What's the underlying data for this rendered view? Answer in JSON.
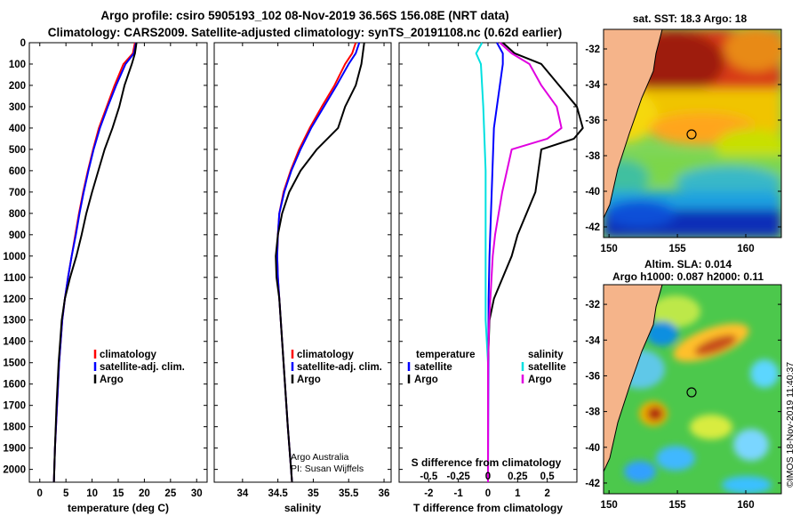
{
  "title_line1": "Argo profile: csiro 5905193_102 08-Nov-2019 36.56S 156.08E (NRT data)",
  "title_line2": "Climatology: CARS2009. Satellite-adjusted climatology: synTS_20191108.nc (0.62d earlier)",
  "colors": {
    "climatology": "#ff0000",
    "satellite": "#0000ff",
    "argo": "#000000",
    "s_satellite": "#00e0e0",
    "s_argo": "#e000e0"
  },
  "chart_data": [
    {
      "type": "line",
      "id": "temperature",
      "xlabel": "temperature (deg C)",
      "ylabel": "",
      "xlim": [
        -2,
        32
      ],
      "ylim": [
        2060,
        0
      ],
      "xticks": [
        "0",
        "5",
        "10",
        "15",
        "20",
        "25",
        "30"
      ],
      "yticks": [
        "0",
        "100",
        "200",
        "300",
        "400",
        "500",
        "600",
        "700",
        "800",
        "900",
        "1000",
        "1100",
        "1200",
        "1300",
        "1400",
        "1500",
        "1600",
        "1700",
        "1800",
        "1900",
        "2000"
      ],
      "legend": [
        "climatology",
        "satellite-adj. clim.",
        "Argo"
      ],
      "series": [
        {
          "name": "climatology",
          "color": "#ff0000",
          "depth": [
            0,
            50,
            100,
            200,
            300,
            400,
            500,
            600,
            700,
            800,
            900,
            1000,
            1100,
            1200,
            1300,
            1500,
            1700,
            1900,
            2060
          ],
          "values": [
            18.2,
            17.8,
            16.0,
            14.3,
            12.8,
            11.3,
            10.2,
            9.2,
            8.3,
            7.5,
            6.8,
            6.1,
            5.4,
            4.8,
            4.3,
            3.7,
            3.3,
            2.9,
            2.7
          ]
        },
        {
          "name": "satellite-adj. clim.",
          "color": "#0000ff",
          "depth": [
            0,
            50,
            100,
            200,
            300,
            400,
            500,
            600,
            700,
            800,
            900,
            1000,
            1100,
            1200,
            1300,
            1500,
            1700,
            1900,
            2060
          ],
          "values": [
            18.4,
            18.0,
            16.4,
            14.6,
            13.0,
            11.5,
            10.3,
            9.3,
            8.4,
            7.6,
            6.9,
            6.1,
            5.4,
            4.8,
            4.3,
            3.7,
            3.3,
            2.9,
            2.7
          ]
        },
        {
          "name": "Argo",
          "color": "#000000",
          "depth": [
            0,
            50,
            100,
            200,
            300,
            400,
            500,
            600,
            700,
            800,
            900,
            1000,
            1100,
            1200,
            1300,
            1500,
            1700,
            1900,
            2060
          ],
          "values": [
            18.5,
            18.2,
            17.6,
            16.2,
            15.2,
            13.9,
            12.4,
            11.2,
            10.0,
            8.9,
            8.0,
            7.0,
            5.8,
            4.8,
            4.2,
            3.6,
            3.2,
            2.9,
            2.7
          ]
        }
      ]
    },
    {
      "type": "line",
      "id": "salinity",
      "xlabel": "salinity",
      "ylabel": "",
      "xlim": [
        33.6,
        36.1
      ],
      "ylim": [
        2060,
        0
      ],
      "xticks": [
        "34",
        "34.5",
        "35",
        "35.5",
        "36"
      ],
      "legend": [
        "climatology",
        "satellite-adj. clim.",
        "Argo"
      ],
      "annotation": [
        "Argo Australia",
        "PI: Susan Wijffels"
      ],
      "series": [
        {
          "name": "climatology",
          "color": "#ff0000",
          "depth": [
            0,
            50,
            100,
            200,
            300,
            400,
            500,
            600,
            700,
            800,
            900,
            1000,
            1100,
            1200,
            1300,
            1400,
            1600,
            1800,
            2060
          ],
          "values": [
            35.6,
            35.55,
            35.45,
            35.3,
            35.12,
            34.95,
            34.8,
            34.68,
            34.58,
            34.52,
            34.5,
            34.49,
            34.5,
            34.52,
            34.54,
            34.56,
            34.6,
            34.64,
            34.7
          ]
        },
        {
          "name": "satellite-adj. clim.",
          "color": "#0000ff",
          "depth": [
            0,
            50,
            100,
            200,
            300,
            400,
            500,
            600,
            700,
            800,
            900,
            1000,
            1100,
            1200,
            1300,
            1400,
            1600,
            1800,
            2060
          ],
          "values": [
            35.65,
            35.6,
            35.5,
            35.33,
            35.15,
            34.97,
            34.82,
            34.69,
            34.59,
            34.52,
            34.5,
            34.49,
            34.5,
            34.52,
            34.54,
            34.56,
            34.6,
            34.64,
            34.7
          ]
        },
        {
          "name": "Argo",
          "color": "#000000",
          "depth": [
            0,
            50,
            100,
            200,
            300,
            400,
            500,
            600,
            700,
            800,
            900,
            1000,
            1100,
            1200,
            1300,
            1400,
            1600,
            1800,
            2060
          ],
          "values": [
            35.72,
            35.7,
            35.68,
            35.6,
            35.45,
            35.35,
            35.05,
            34.82,
            34.66,
            34.56,
            34.5,
            34.47,
            34.48,
            34.52,
            34.54,
            34.56,
            34.6,
            34.64,
            34.7
          ]
        }
      ]
    },
    {
      "type": "line",
      "id": "difference",
      "xlabel": "T difference from climatology",
      "xlabel2": "S difference from climatology",
      "xlim": [
        -3,
        3
      ],
      "ylim": [
        2060,
        0
      ],
      "xticks": [
        "-2",
        "-1",
        "0",
        "1",
        "2"
      ],
      "xticks2": [
        "-0.5",
        "-0.25",
        "0",
        "0.25",
        "0.5"
      ],
      "legend_left_title": "temperature",
      "legend_right_title": "salinity",
      "legend_left": [
        "satellite",
        "Argo"
      ],
      "legend_right": [
        "satellite",
        "Argo"
      ],
      "series": [
        {
          "name": "T satellite",
          "color": "#0000ff",
          "depth": [
            0,
            50,
            100,
            200,
            300,
            400,
            600,
            800,
            1000,
            1200,
            2060
          ],
          "values": [
            0.3,
            0.5,
            0.5,
            0.4,
            0.3,
            0.2,
            0.15,
            0.1,
            0.05,
            0.02,
            0.0
          ]
        },
        {
          "name": "T Argo",
          "color": "#000000",
          "depth": [
            0,
            50,
            100,
            200,
            300,
            400,
            450,
            500,
            600,
            700,
            800,
            900,
            1000,
            1100,
            1200,
            1300,
            1500,
            2060
          ],
          "values": [
            0.5,
            0.9,
            1.8,
            2.4,
            3.0,
            3.2,
            2.9,
            1.8,
            1.7,
            1.6,
            1.3,
            1.0,
            0.8,
            0.5,
            0.2,
            0.05,
            0.0,
            0.0
          ]
        },
        {
          "name": "S satellite",
          "color": "#00e0e0",
          "depth": [
            0,
            50,
            100,
            300,
            600,
            1000,
            1300,
            1500,
            2060
          ],
          "values": [
            -0.05,
            -0.1,
            -0.06,
            -0.04,
            -0.02,
            -0.02,
            -0.02,
            0.0,
            0.0
          ]
        },
        {
          "name": "S Argo",
          "color": "#e000e0",
          "depth": [
            0,
            50,
            100,
            200,
            300,
            400,
            450,
            500,
            600,
            700,
            800,
            900,
            1000,
            1300,
            1500,
            2060
          ],
          "values": [
            0.1,
            0.2,
            0.35,
            0.45,
            0.58,
            0.62,
            0.5,
            0.2,
            0.16,
            0.12,
            0.09,
            0.06,
            0.04,
            0.01,
            0.0,
            0.0
          ]
        }
      ]
    }
  ],
  "maps": [
    {
      "title": "sat. SST: 18.3 Argo: 18",
      "xticks": [
        "150",
        "155",
        "160"
      ],
      "yticks": [
        "-32",
        "-34",
        "-36",
        "-38",
        "-40",
        "-42"
      ]
    },
    {
      "title_line1": "Altim. SLA: 0.014",
      "title_line2": "Argo h1000: 0.087 h2000: 0.11",
      "xticks": [
        "150",
        "155",
        "160"
      ],
      "yticks": [
        "-32",
        "-34",
        "-36",
        "-38",
        "-40",
        "-42"
      ]
    }
  ],
  "stamp": "©IMOS 18-Nov-2019 11:40:37"
}
